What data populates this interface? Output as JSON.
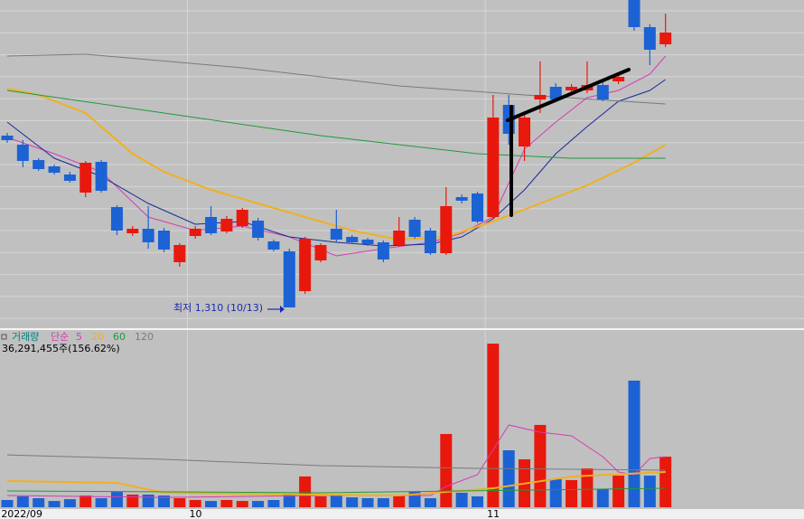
{
  "chart_data": {
    "type": "candlestick",
    "categories": [
      "2022/09",
      null,
      null,
      null,
      null,
      null,
      null,
      null,
      null,
      null,
      null,
      null,
      "10",
      null,
      null,
      null,
      null,
      null,
      null,
      null,
      null,
      null,
      null,
      null,
      null,
      null,
      null,
      null,
      null,
      null,
      null,
      "11",
      null,
      null,
      null,
      null,
      null,
      null,
      null,
      null,
      null,
      null,
      null
    ],
    "open": [
      1690,
      1670,
      1636,
      1622,
      1604,
      1564,
      1632,
      1532,
      1474,
      1484,
      1480,
      1410,
      1468,
      1510,
      1478,
      1490,
      1502,
      1456,
      1434,
      1346,
      1414,
      1484,
      1466,
      1460,
      1454,
      1448,
      1504,
      1480,
      1430,
      1554,
      1562,
      1510,
      1758,
      1666,
      1770,
      1798,
      1790,
      1790,
      1802,
      1810,
      1990,
      1930,
      1892
    ],
    "high": [
      1696,
      1680,
      1640,
      1626,
      1610,
      1634,
      1636,
      1536,
      1490,
      1534,
      1486,
      1452,
      1490,
      1534,
      1512,
      1530,
      1508,
      1460,
      1440,
      1466,
      1452,
      1526,
      1470,
      1464,
      1458,
      1510,
      1510,
      1486,
      1576,
      1560,
      1566,
      1780,
      1780,
      1740,
      1854,
      1806,
      1804,
      1854,
      1808,
      1826,
      1990,
      1936,
      1960
    ],
    "low": [
      1674,
      1620,
      1612,
      1604,
      1586,
      1554,
      1564,
      1470,
      1468,
      1440,
      1432,
      1400,
      1462,
      1470,
      1474,
      1486,
      1458,
      1434,
      1310,
      1340,
      1410,
      1454,
      1450,
      1446,
      1410,
      1444,
      1462,
      1426,
      1426,
      1540,
      1496,
      1506,
      1670,
      1634,
      1740,
      1764,
      1784,
      1784,
      1766,
      1804,
      1922,
      1846,
      1886
    ],
    "close": [
      1680,
      1634,
      1616,
      1608,
      1590,
      1630,
      1568,
      1480,
      1484,
      1454,
      1438,
      1448,
      1484,
      1474,
      1506,
      1526,
      1464,
      1438,
      1310,
      1462,
      1448,
      1460,
      1454,
      1450,
      1416,
      1480,
      1466,
      1430,
      1534,
      1546,
      1500,
      1730,
      1694,
      1730,
      1780,
      1770,
      1798,
      1802,
      1770,
      1820,
      1930,
      1880,
      1918
    ],
    "up_color": "#e8180c",
    "down_color": "#1c62d4",
    "ylim": [
      1260,
      1990
    ],
    "grid": true,
    "annotation": "최저 1,310 (10/13)",
    "ma_lines": [
      {
        "color": "#d63cb4",
        "x": [
          0,
          3,
          6,
          9,
          12,
          15,
          18,
          21,
          24,
          27,
          29,
          31,
          33,
          35,
          37,
          39,
          41,
          42
        ],
        "values": [
          1686,
          1650,
          1610,
          1510,
          1480,
          1490,
          1466,
          1424,
          1440,
          1454,
          1474,
          1510,
          1660,
          1720,
          1774,
          1790,
          1826,
          1866
        ]
      },
      {
        "color": "#1a2a9a",
        "x": [
          0,
          3,
          6,
          9,
          12,
          15,
          18,
          21,
          24,
          27,
          29,
          31,
          33,
          35,
          37,
          39,
          41,
          42
        ],
        "values": [
          1720,
          1640,
          1600,
          1540,
          1494,
          1500,
          1466,
          1454,
          1446,
          1450,
          1466,
          1506,
          1570,
          1650,
          1710,
          1766,
          1790,
          1814
        ]
      },
      {
        "color": "#f0b020",
        "x": [
          0,
          2,
          5,
          8,
          10,
          13,
          16,
          19,
          22,
          25,
          28,
          31,
          34,
          37,
          40,
          42
        ],
        "values": [
          1794,
          1780,
          1740,
          1650,
          1610,
          1570,
          1540,
          1510,
          1480,
          1460,
          1466,
          1500,
          1540,
          1580,
          1630,
          1670
        ]
      },
      {
        "color": "#1f9a3c",
        "x": [
          0,
          10,
          20,
          30,
          36,
          42
        ],
        "values": [
          1790,
          1740,
          1690,
          1650,
          1640,
          1640
        ]
      },
      {
        "color": "#7a7a7a",
        "x": [
          0,
          5,
          15,
          25,
          33,
          42
        ],
        "values": [
          1866,
          1870,
          1840,
          1800,
          1780,
          1760
        ]
      }
    ],
    "volume": {
      "type": "bar",
      "legend_title": "거래량",
      "legend_method": "단순",
      "info": "36,291,455주(156.62%)",
      "values": [
        5200000,
        7800000,
        6500000,
        4500000,
        5800000,
        8400000,
        6500000,
        11000000,
        9100000,
        9100000,
        8400000,
        6500000,
        5200000,
        4500000,
        5200000,
        4500000,
        4500000,
        5200000,
        9700000,
        22100000,
        7800000,
        9100000,
        7100000,
        6500000,
        6500000,
        9100000,
        11000000,
        6500000,
        52600000,
        10400000,
        7800000,
        117500000,
        40900000,
        34400000,
        59100000,
        20100000,
        19500000,
        27900000,
        13000000,
        22700000,
        90900000,
        22700000,
        36291455
      ],
      "ylim": [
        0,
        124000000
      ],
      "ma_lines": [
        {
          "name": "5",
          "color": "#d63cb4",
          "x": [
            0,
            10,
            20,
            27,
            28,
            30,
            32,
            34,
            36,
            38,
            39,
            40,
            41,
            42
          ],
          "values": [
            8400000,
            7100000,
            8400000,
            8400000,
            14900000,
            23400000,
            59100000,
            53900000,
            51300000,
            36300000,
            25300000,
            23400000,
            35000000,
            36300000
          ]
        },
        {
          "name": "20",
          "color": "#f0b020",
          "x": [
            0,
            7,
            10,
            25,
            31,
            36,
            42
          ],
          "values": [
            18800000,
            17500000,
            10400000,
            8400000,
            13600000,
            22100000,
            25300000
          ]
        },
        {
          "name": "60",
          "color": "#1f9a3c",
          "x": [
            0,
            20,
            42
          ],
          "values": [
            11700000,
            10400000,
            13600000
          ]
        },
        {
          "name": "120",
          "color": "#7a7a7a",
          "x": [
            0,
            10,
            20,
            30,
            42
          ],
          "values": [
            37600000,
            34400000,
            29900000,
            27900000,
            26600000
          ]
        }
      ]
    }
  }
}
